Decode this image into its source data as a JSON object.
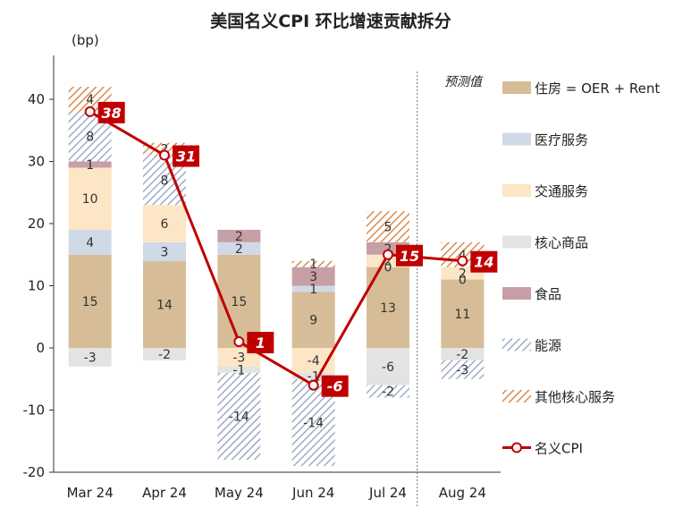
{
  "chart_data": {
    "type": "bar",
    "stacked": true,
    "title": "美国名义CPI 环比增速贡献拆分",
    "ylabel": "(bp)",
    "ylim": [
      -20,
      45
    ],
    "yticks": [
      -20,
      -10,
      0,
      10,
      20,
      30,
      40
    ],
    "ytick_labels": [
      "-20",
      "-10",
      "0",
      "10",
      "20",
      "30",
      "40"
    ],
    "categories": [
      "Mar 24",
      "Apr 24",
      "May 24",
      "Jun 24",
      "Jul 24",
      "Aug 24"
    ],
    "forecast_label": "预测值",
    "forecast_from_index": 5,
    "grid": false,
    "legend_position": "right",
    "series": [
      {
        "name": "住房 = OER + Rent",
        "color": "#d6bd97",
        "pattern": "solid",
        "values": [
          15,
          14,
          15,
          9,
          13,
          11
        ]
      },
      {
        "name": "医疗服务",
        "color": "#d0dae6",
        "pattern": "solid",
        "values": [
          4,
          3,
          2,
          1,
          0,
          0
        ]
      },
      {
        "name": "交通服务",
        "color": "#fde6c6",
        "pattern": "solid",
        "values": [
          10,
          6,
          -3,
          -4,
          2,
          2
        ]
      },
      {
        "name": "核心商品",
        "color": "#e3e3e3",
        "pattern": "solid",
        "values": [
          -3,
          -2,
          -1,
          -1,
          -6,
          -2
        ]
      },
      {
        "name": "食品",
        "color": "#c79fa6",
        "pattern": "solid",
        "values": [
          1,
          0,
          2,
          3,
          2,
          0
        ]
      },
      {
        "name": "能源",
        "color": "#9eacc4",
        "pattern": "hatch",
        "values": [
          8,
          8,
          -14,
          -14,
          -2,
          -3
        ]
      },
      {
        "name": "其他核心服务",
        "color": "#d98c4e",
        "pattern": "hatch",
        "values": [
          4,
          2,
          0,
          1,
          5,
          4
        ]
      }
    ],
    "bar_labels": [
      [
        {
          "series": "住房 = OER + Rent",
          "text": "15"
        },
        {
          "series": "医疗服务",
          "text": "4"
        },
        {
          "series": "交通服务",
          "text": "10"
        },
        {
          "series": "食品",
          "text": "1"
        },
        {
          "series": "能源",
          "text": "8"
        },
        {
          "series": "其他核心服务",
          "text": "4"
        },
        {
          "series": "核心商品",
          "text": "-3"
        }
      ],
      [
        {
          "series": "住房 = OER + Rent",
          "text": "14"
        },
        {
          "series": "医疗服务",
          "text": "3"
        },
        {
          "series": "交通服务",
          "text": "6"
        },
        {
          "series": "能源",
          "text": "8"
        },
        {
          "series": "其他核心服务",
          "text": "2"
        },
        {
          "series": "核心商品",
          "text": "-2"
        }
      ],
      [
        {
          "series": "住房 = OER + Rent",
          "text": "15"
        },
        {
          "series": "医疗服务",
          "text": "2"
        },
        {
          "series": "食品",
          "text": "2"
        },
        {
          "series": "交通服务",
          "text": "-3"
        },
        {
          "series": "核心商品",
          "text": "-1"
        },
        {
          "series": "能源",
          "text": "-14"
        }
      ],
      [
        {
          "series": "住房 = OER + Rent",
          "text": "9"
        },
        {
          "series": "医疗服务",
          "text": "1"
        },
        {
          "series": "食品",
          "text": "3"
        },
        {
          "series": "其他核心服务",
          "text": "1"
        },
        {
          "series": "交通服务",
          "text": "-4"
        },
        {
          "series": "核心商品",
          "text": "-1"
        },
        {
          "series": "能源",
          "text": "-14"
        }
      ],
      [
        {
          "series": "住房 = OER + Rent",
          "text": "13"
        },
        {
          "series": "医疗服务",
          "text": "0"
        },
        {
          "series": "交通服务",
          "text": "2"
        },
        {
          "series": "食品",
          "text": "2"
        },
        {
          "series": "其他核心服务",
          "text": "5"
        },
        {
          "series": "能源",
          "text": "-2"
        },
        {
          "series": "核心商品",
          "text": "-6"
        }
      ],
      [
        {
          "series": "住房 = OER + Rent",
          "text": "11"
        },
        {
          "series": "医疗服务",
          "text": "0"
        },
        {
          "series": "交通服务",
          "text": "2"
        },
        {
          "series": "其他核心服务",
          "text": "4"
        },
        {
          "series": "核心商品",
          "text": "-2"
        },
        {
          "series": "能源",
          "text": "-3"
        }
      ]
    ],
    "line": {
      "name": "名义CPI",
      "color": "#c00000",
      "values": [
        38,
        31,
        1,
        -6,
        15,
        14
      ],
      "labels": [
        "38",
        "31",
        "1",
        "-6",
        "15",
        "14"
      ]
    }
  }
}
